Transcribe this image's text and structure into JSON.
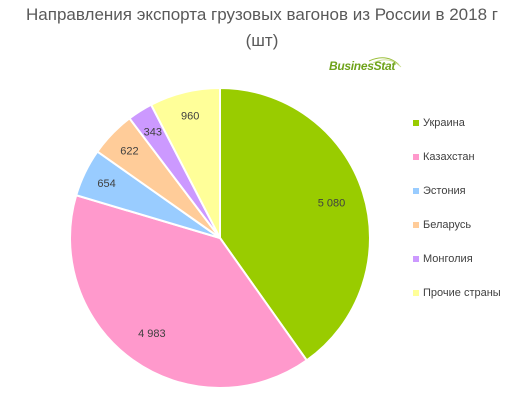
{
  "title_line1": "Направления экспорта грузовых вагонов из России в 2018 г",
  "title_line2": "(шт)",
  "logo_text": "BusinesStat",
  "chart_data": {
    "type": "pie",
    "title": "Направления экспорта грузовых вагонов из России в 2018 г (шт)",
    "categories": [
      "Украина",
      "Казахстан",
      "Эстония",
      "Беларусь",
      "Монголия",
      "Прочие страны"
    ],
    "values": [
      5080,
      4983,
      654,
      622,
      343,
      960
    ],
    "value_labels": [
      "5 080",
      "4 983",
      "654",
      "622",
      "343",
      "960"
    ],
    "colors": [
      "#99cc00",
      "#ff99cc",
      "#99ccff",
      "#ffcc99",
      "#cc99ff",
      "#ffff99"
    ],
    "start_angle_deg": 0,
    "direction": "clockwise",
    "legend_position": "right"
  }
}
